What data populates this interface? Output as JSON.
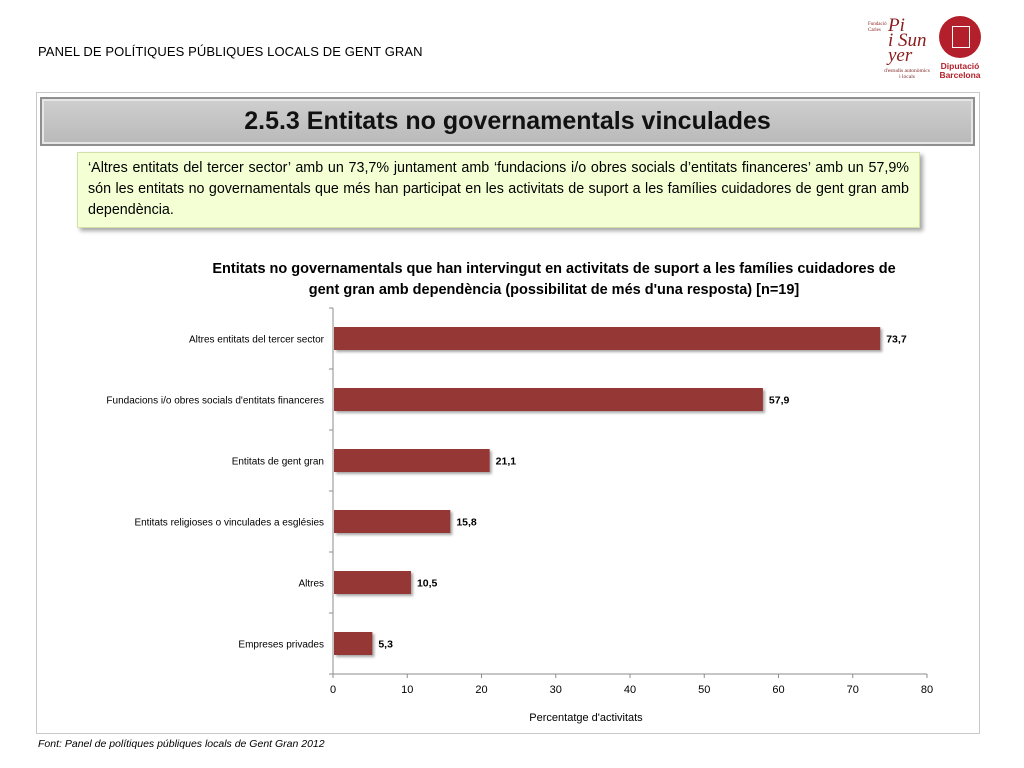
{
  "header": {
    "title": "PANEL DE POLÍTIQUES PÚBLIQUES LOCALS DE GENT GRAN"
  },
  "logos": {
    "pi_small": "Fundació Carles",
    "pi_big_1": "Pi",
    "pi_big_2": "i Sun",
    "pi_big_3": "yer",
    "pi_sub": "d'estudis autonòmics i locals",
    "dip_line1": "Diputació",
    "dip_line2": "Barcelona"
  },
  "section": {
    "title": "2.5.3 Entitats no governamentals vinculades"
  },
  "summary": {
    "text": "‘Altres entitats del tercer sector’ amb un 73,7% juntament amb ‘fundacions i/o obres socials d’entitats financeres’ amb un 57,9% són les entitats no governamentals que més han participat en les activitats de suport a les famílies cuidadores de gent gran amb dependència."
  },
  "chart_data": {
    "type": "bar",
    "orientation": "horizontal",
    "title": "Entitats no governamentals que han intervingut en activitats de suport a les famílies cuidadores de gent gran amb dependència (possibilitat de més d'una resposta) [n=19]",
    "categories": [
      "Altres entitats del tercer sector",
      "Fundacions i/o obres socials d'entitats financeres",
      "Entitats de gent gran",
      "Entitats religioses o vinculades a esglésies",
      "Altres",
      "Empreses privades"
    ],
    "values": [
      73.7,
      57.9,
      21.1,
      15.8,
      10.5,
      5.3
    ],
    "data_labels": [
      "73,7",
      "57,9",
      "21,1",
      "15,8",
      "10,5",
      "5,3"
    ],
    "xlabel": "Percentatge d'activitats",
    "ylabel": "",
    "xlim": [
      0,
      80
    ],
    "xticks": [
      0,
      10,
      20,
      30,
      40,
      50,
      60,
      70,
      80
    ],
    "bar_color": "#953735",
    "grid": false
  },
  "footer": {
    "source": "Font: Panel de  polítiques públiques locals de Gent Gran 2012"
  }
}
